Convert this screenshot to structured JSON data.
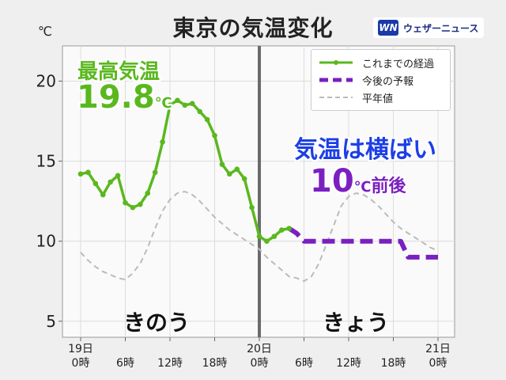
{
  "header": {
    "title": "東京の気温変化",
    "brand_logo": "ウェザーニュース"
  },
  "chart_data": {
    "type": "line",
    "unit_label": "℃",
    "yticks": [
      5,
      10,
      15,
      20
    ],
    "ylim": [
      4,
      22.2
    ],
    "xlim": [
      0,
      48
    ],
    "xtick_labels": [
      {
        "x": 0,
        "l1": "19日",
        "l2": "0時"
      },
      {
        "x": 6,
        "l1": "",
        "l2": "6時"
      },
      {
        "x": 12,
        "l1": "",
        "l2": "12時"
      },
      {
        "x": 18,
        "l1": "",
        "l2": "18時"
      },
      {
        "x": 24,
        "l1": "20日",
        "l2": "0時"
      },
      {
        "x": 30,
        "l1": "",
        "l2": "6時"
      },
      {
        "x": 36,
        "l1": "",
        "l2": "12時"
      },
      {
        "x": 42,
        "l1": "",
        "l2": "18時"
      },
      {
        "x": 48,
        "l1": "21日",
        "l2": "0時"
      }
    ],
    "grid": true,
    "now_line_x": 24,
    "legend_position": "top-right",
    "series": [
      {
        "name": "これまでの経過",
        "color": "#5ab81e",
        "style": "solid-markers",
        "x": [
          0,
          1,
          2,
          3,
          4,
          5,
          6,
          7,
          8,
          9,
          10,
          11,
          12,
          13,
          14,
          15,
          16,
          17,
          18,
          19,
          20,
          21,
          22,
          23,
          24,
          25,
          26,
          27,
          28
        ],
        "y": [
          14.2,
          14.3,
          13.6,
          12.9,
          13.7,
          14.1,
          12.4,
          12.1,
          12.3,
          13.0,
          14.3,
          16.2,
          18.5,
          18.8,
          18.5,
          18.6,
          18.1,
          17.6,
          16.6,
          14.8,
          14.2,
          14.5,
          13.9,
          12.1,
          10.3,
          10.0,
          10.3,
          10.7,
          10.8
        ]
      },
      {
        "name": "今後の予報",
        "color": "#7a1fc0",
        "style": "dashed",
        "x": [
          28,
          29,
          30,
          36,
          42,
          43,
          44,
          48
        ],
        "y": [
          10.8,
          10.5,
          10.0,
          10.0,
          10.0,
          10.0,
          9.0,
          9.0
        ]
      },
      {
        "name": "平年値",
        "color": "#bbbbbb",
        "style": "dashed-thin",
        "x": [
          0,
          1,
          2,
          3,
          4,
          5,
          6,
          7,
          8,
          9,
          10,
          11,
          12,
          13,
          14,
          15,
          16,
          17,
          18,
          19,
          20,
          21,
          22,
          23,
          24,
          25,
          26,
          27,
          28,
          29,
          30,
          31,
          32,
          33,
          34,
          35,
          36,
          37,
          38,
          39,
          40,
          41,
          42,
          43,
          44,
          45,
          46,
          47,
          48
        ],
        "y": [
          9.3,
          8.8,
          8.4,
          8.1,
          7.9,
          7.7,
          7.6,
          8.0,
          8.6,
          9.6,
          10.8,
          11.9,
          12.6,
          13.0,
          13.1,
          12.9,
          12.5,
          12.0,
          11.5,
          11.1,
          10.7,
          10.4,
          10.1,
          9.8,
          9.5,
          9.0,
          8.6,
          8.2,
          7.8,
          7.7,
          7.5,
          7.8,
          8.6,
          9.8,
          11.0,
          12.2,
          12.8,
          13.0,
          12.9,
          12.6,
          12.2,
          11.7,
          11.2,
          10.8,
          10.5,
          10.2,
          9.9,
          9.6,
          9.4
        ]
      }
    ]
  },
  "annotations": {
    "max_label": "最高気温",
    "max_value": "19.8",
    "max_unit": "℃",
    "trend_label": "気温は横ばい",
    "trend_value": "10",
    "trend_unit": "℃",
    "trend_suffix": "前後",
    "yesterday_label": "きのう",
    "today_label": "きょう"
  },
  "colors": {
    "observed": "#5ab81e",
    "forecast": "#7a1fc0",
    "normal": "#bbbbbb",
    "trend_label": "#1c3fe6",
    "now_line": "#6b6b6b"
  }
}
